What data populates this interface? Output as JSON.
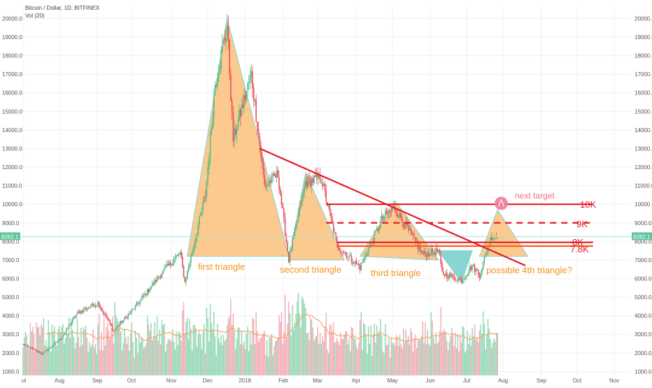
{
  "header": {
    "symbol": "Bitcoin / Dollar, 1D, BITFINEX",
    "volume_indicator": "Vol (20)"
  },
  "colors": {
    "candle_up": "#53b987",
    "candle_down": "#eb4d5c",
    "vol_up": "#7ccfa5",
    "vol_down": "#f29aa3",
    "vol_ma": "#f5a15a",
    "triangle_fill": "#fbb563",
    "triangle_stroke": "#7fd4ce",
    "dip_fill": "#62c7c1",
    "resistance": "#e31b23",
    "support": "#ff5a1f",
    "target_circle": "#f27aa0",
    "price_line": "#9ee6c8",
    "price_badge": "#5fc39a"
  },
  "chart_data": {
    "type": "candlestick",
    "title": "Bitcoin / Dollar, 1D, BITFINEX",
    "x_axis": {
      "tick_labels": [
        "ul",
        "Aug",
        "Sep",
        "Oct",
        "Nov",
        "Dec",
        "2018",
        "Feb",
        "Mar",
        "Apr",
        "May",
        "Jun",
        "Jul",
        "Aug",
        "Sep",
        "Oct",
        "Nov"
      ],
      "range": [
        "2017-07-01",
        "2018-11-28"
      ]
    },
    "y_axis": {
      "side": "both",
      "tick_labels": [
        "1000.0",
        "2000.0",
        "3000.0",
        "4000.0",
        "5000.0",
        "6000.0",
        "7000.0",
        "8000.0",
        "9000.0",
        "10000.0",
        "11000.0",
        "12000.0",
        "13000.0",
        "14000.0",
        "15000.0",
        "16000.0",
        "17000.0",
        "18000.0",
        "19000.0",
        "20000.0"
      ],
      "range": [
        800,
        20800
      ]
    },
    "current_price": {
      "label": "8262.1",
      "value": 8262.1
    },
    "price_keypoints": [
      {
        "date": "2017-07-01",
        "value": 2450
      },
      {
        "date": "2017-07-17",
        "value": 1950
      },
      {
        "date": "2017-08-01",
        "value": 2750
      },
      {
        "date": "2017-08-15",
        "value": 4150
      },
      {
        "date": "2017-09-01",
        "value": 4700
      },
      {
        "date": "2017-09-14",
        "value": 3200
      },
      {
        "date": "2017-10-01",
        "value": 4400
      },
      {
        "date": "2017-10-20",
        "value": 6000
      },
      {
        "date": "2017-11-08",
        "value": 7400
      },
      {
        "date": "2017-11-12",
        "value": 5800
      },
      {
        "date": "2017-11-29",
        "value": 10500
      },
      {
        "date": "2017-12-07",
        "value": 16500
      },
      {
        "date": "2017-12-17",
        "value": 19600
      },
      {
        "date": "2017-12-22",
        "value": 13500
      },
      {
        "date": "2018-01-06",
        "value": 17000
      },
      {
        "date": "2018-01-17",
        "value": 11000
      },
      {
        "date": "2018-01-28",
        "value": 11600
      },
      {
        "date": "2018-02-06",
        "value": 7000
      },
      {
        "date": "2018-02-20",
        "value": 11200
      },
      {
        "date": "2018-03-05",
        "value": 11400
      },
      {
        "date": "2018-03-18",
        "value": 7800
      },
      {
        "date": "2018-04-01",
        "value": 6900
      },
      {
        "date": "2018-04-06",
        "value": 6600
      },
      {
        "date": "2018-04-25",
        "value": 9300
      },
      {
        "date": "2018-05-05",
        "value": 9800
      },
      {
        "date": "2018-05-28",
        "value": 7300
      },
      {
        "date": "2018-06-10",
        "value": 7500
      },
      {
        "date": "2018-06-13",
        "value": 6300
      },
      {
        "date": "2018-06-29",
        "value": 5900
      },
      {
        "date": "2018-07-08",
        "value": 6700
      },
      {
        "date": "2018-07-14",
        "value": 6200
      },
      {
        "date": "2018-07-24",
        "value": 8300
      },
      {
        "date": "2018-07-29",
        "value": 8200
      }
    ],
    "volume": {
      "label": "Vol (20)",
      "approx_range": [
        0,
        5000
      ],
      "ma_period": 20
    },
    "annotations": {
      "triangles": [
        {
          "label": "first triangle",
          "points": [
            [
              "2017-11-14",
              7200
            ],
            [
              "2017-12-17",
              20000
            ],
            [
              "2018-02-06",
              7200
            ]
          ]
        },
        {
          "label": "second triangle",
          "points": [
            [
              "2018-02-06",
              7000
            ],
            [
              "2018-02-20",
              11700
            ],
            [
              "2018-03-24",
              7000
            ]
          ]
        },
        {
          "label": "third triangle",
          "points": [
            [
              "2018-04-06",
              7200
            ],
            [
              "2018-05-05",
              10200
            ],
            [
              "2018-06-10",
              7000
            ]
          ]
        },
        {
          "label": "possible 4th triangle?",
          "points": [
            [
              "2018-07-14",
              7200
            ],
            [
              "2018-07-29",
              9700
            ],
            [
              "2018-08-23",
              7200
            ]
          ]
        }
      ],
      "dip": {
        "points": [
          [
            "2018-06-10",
            7500
          ],
          [
            "2018-06-29",
            5800
          ],
          [
            "2018-07-08",
            7500
          ]
        ]
      },
      "downtrend_line": {
        "from": [
          "2018-01-13",
          13000
        ],
        "to": [
          "2018-08-21",
          6700
        ]
      },
      "levels": [
        {
          "label": "10K",
          "value": 10000,
          "style": "solid",
          "from": "2018-03-09",
          "to": "2018-10-16"
        },
        {
          "label": "9K",
          "value": 9000,
          "style": "dashed",
          "from": "2018-03-09",
          "to": "2018-10-16"
        },
        {
          "label": "8K",
          "value": 7950,
          "style": "solid",
          "from": "2018-03-18",
          "to": "2018-10-16"
        },
        {
          "label": "7.8K",
          "value": 7750,
          "style": "solid",
          "from": "2018-03-18",
          "to": "2018-10-16"
        }
      ],
      "next_target": {
        "label": "next target",
        "at": [
          "2018-08-01",
          10050
        ]
      }
    }
  }
}
